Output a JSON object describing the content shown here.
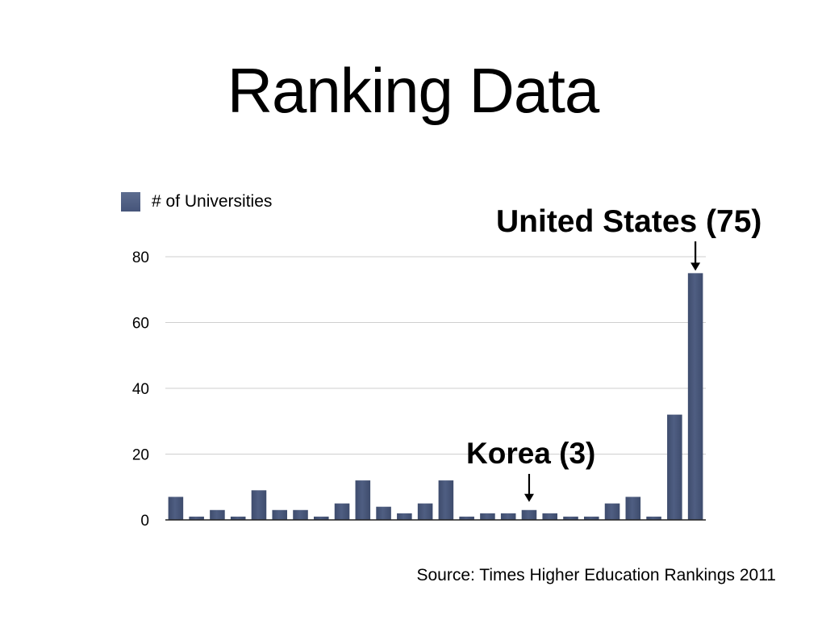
{
  "slide": {
    "title": "Ranking Data",
    "source": "Source: Times Higher Education Rankings 2011"
  },
  "colors": {
    "bar": "#4f5e82",
    "gridline": "#cfcfcf",
    "axis": "#222222"
  },
  "chart_data": {
    "type": "bar",
    "title": "",
    "xlabel": "",
    "ylabel": "",
    "ylim": [
      0,
      80
    ],
    "yticks": [
      0,
      20,
      40,
      60,
      80
    ],
    "grid": true,
    "legend_position": "top-left",
    "series": [
      {
        "name": "# of Universities",
        "values": [
          7,
          1,
          3,
          1,
          9,
          3,
          3,
          1,
          5,
          12,
          4,
          2,
          5,
          12,
          1,
          2,
          2,
          3,
          2,
          1,
          1,
          5,
          7,
          1,
          32,
          75
        ]
      }
    ],
    "annotations": [
      {
        "text": "United States (75)",
        "bar_index": 25,
        "value": 75
      },
      {
        "text": "Korea (3)",
        "bar_index": 17,
        "value": 3
      }
    ]
  }
}
